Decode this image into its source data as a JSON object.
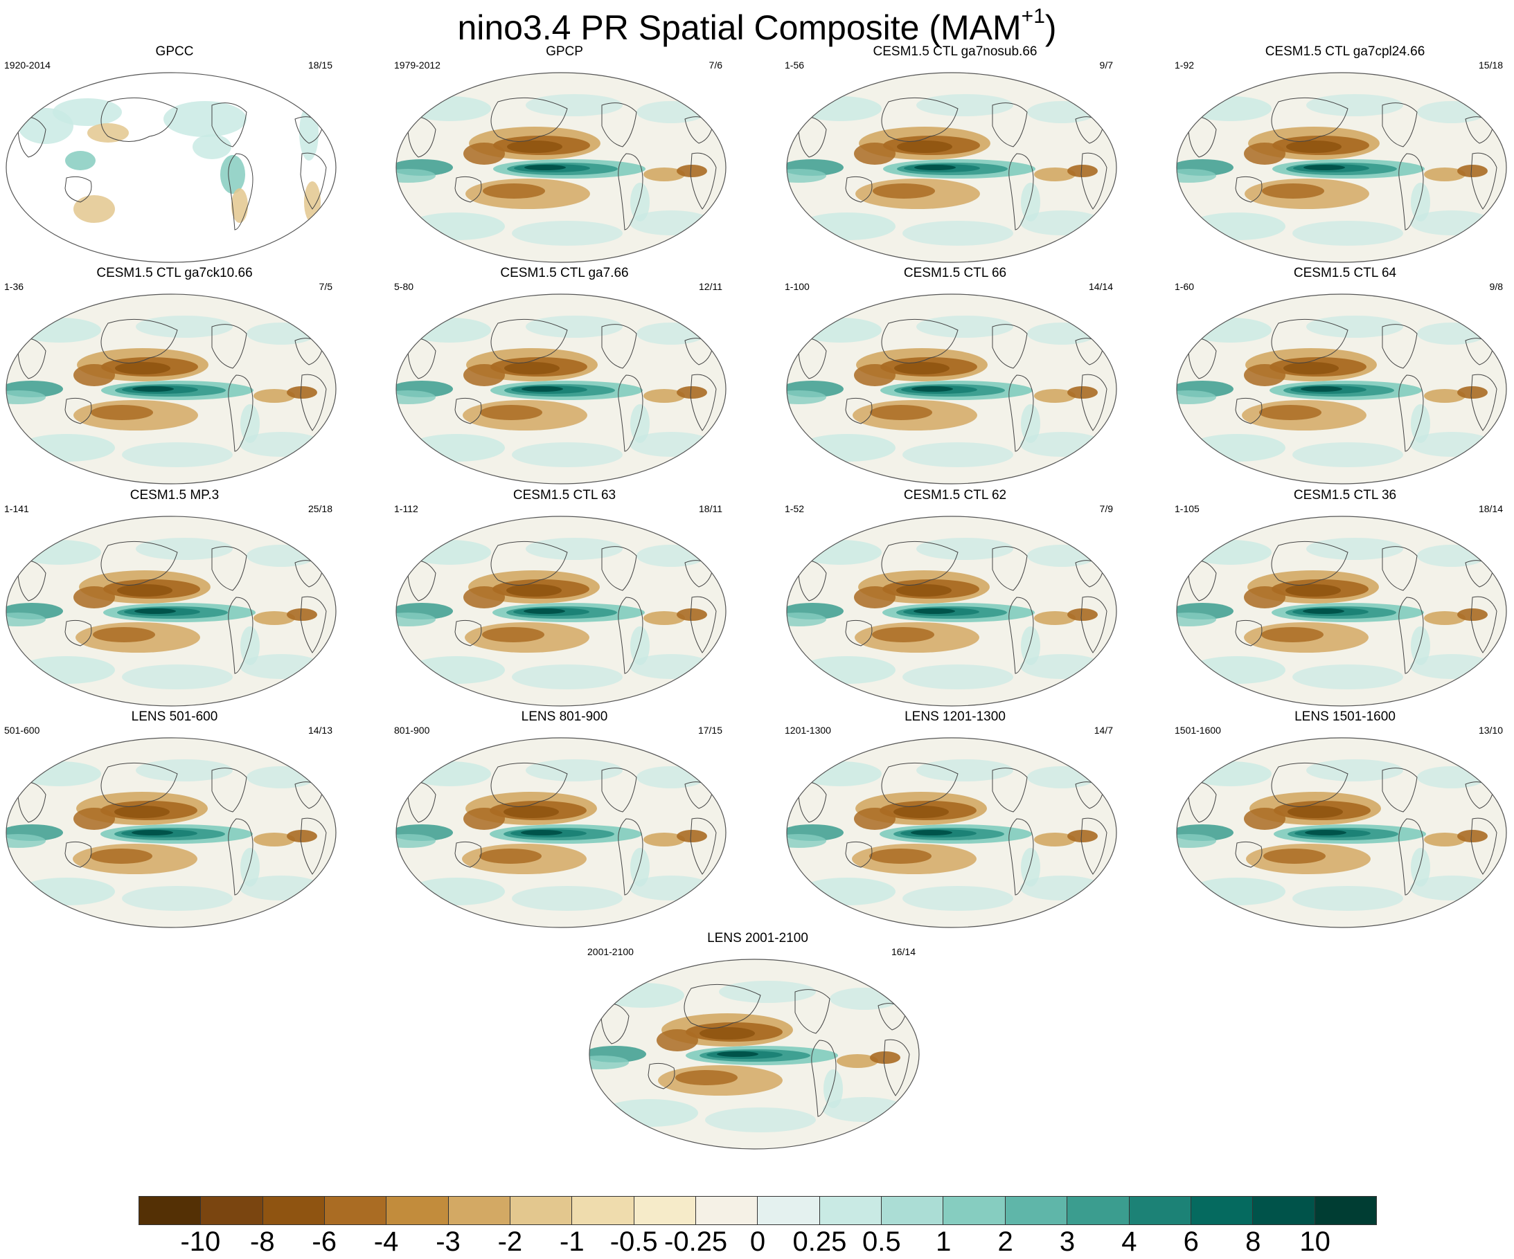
{
  "title": {
    "text": "nino3.4 PR Spatial Composite (MAM",
    "sup": "+1",
    "close": ")"
  },
  "panels": [
    {
      "title": "GPCC",
      "period": "1920-2014",
      "count": "18/15",
      "coverage": "land"
    },
    {
      "title": "GPCP",
      "period": "1979-2012",
      "count": "7/6",
      "coverage": "global"
    },
    {
      "title": "CESM1.5 CTL ga7nosub.66",
      "period": "1-56",
      "count": "9/7",
      "coverage": "global"
    },
    {
      "title": "CESM1.5 CTL ga7cpl24.66",
      "period": "1-92",
      "count": "15/18",
      "coverage": "global"
    },
    {
      "title": "CESM1.5 CTL ga7ck10.66",
      "period": "1-36",
      "count": "7/5",
      "coverage": "global"
    },
    {
      "title": "CESM1.5 CTL ga7.66",
      "period": "5-80",
      "count": "12/11",
      "coverage": "global"
    },
    {
      "title": "CESM1.5 CTL 66",
      "period": "1-100",
      "count": "14/14",
      "coverage": "global"
    },
    {
      "title": "CESM1.5 CTL 64",
      "period": "1-60",
      "count": "9/8",
      "coverage": "global"
    },
    {
      "title": "CESM1.5 MP.3",
      "period": "1-141",
      "count": "25/18",
      "coverage": "global"
    },
    {
      "title": "CESM1.5 CTL 63",
      "period": "1-112",
      "count": "18/11",
      "coverage": "global"
    },
    {
      "title": "CESM1.5 CTL 62",
      "period": "1-52",
      "count": "7/9",
      "coverage": "global"
    },
    {
      "title": "CESM1.5 CTL 36",
      "period": "1-105",
      "count": "18/14",
      "coverage": "global"
    },
    {
      "title": "LENS 501-600",
      "period": "501-600",
      "count": "14/13",
      "coverage": "global"
    },
    {
      "title": "LENS 801-900",
      "period": "801-900",
      "count": "17/15",
      "coverage": "global"
    },
    {
      "title": "LENS 1201-1300",
      "period": "1201-1300",
      "count": "14/7",
      "coverage": "global"
    },
    {
      "title": "LENS 1501-1600",
      "period": "1501-1600",
      "count": "13/10",
      "coverage": "global"
    },
    {
      "title": "LENS 2001-2100",
      "period": "2001-2100",
      "count": "16/14",
      "coverage": "global"
    }
  ],
  "colorbar": {
    "colors": [
      "#543005",
      "#7a4510",
      "#8f5411",
      "#aa6c23",
      "#c28c3c",
      "#d3a964",
      "#e3c78e",
      "#efdcad",
      "#f6ebc9",
      "#f5f1e6",
      "#e4f1ef",
      "#c9eae4",
      "#abddd5",
      "#86cdc0",
      "#5fb6a9",
      "#3b9d8f",
      "#1c8276",
      "#056a5f",
      "#00534a",
      "#003d33"
    ],
    "labels": [
      "-10",
      "-8",
      "-6",
      "-4",
      "-3",
      "-2",
      "-1",
      "-0.5",
      "-0.25",
      "0",
      "0.25",
      "0.5",
      "1",
      "2",
      "3",
      "4",
      "6",
      "8",
      "10"
    ]
  }
}
